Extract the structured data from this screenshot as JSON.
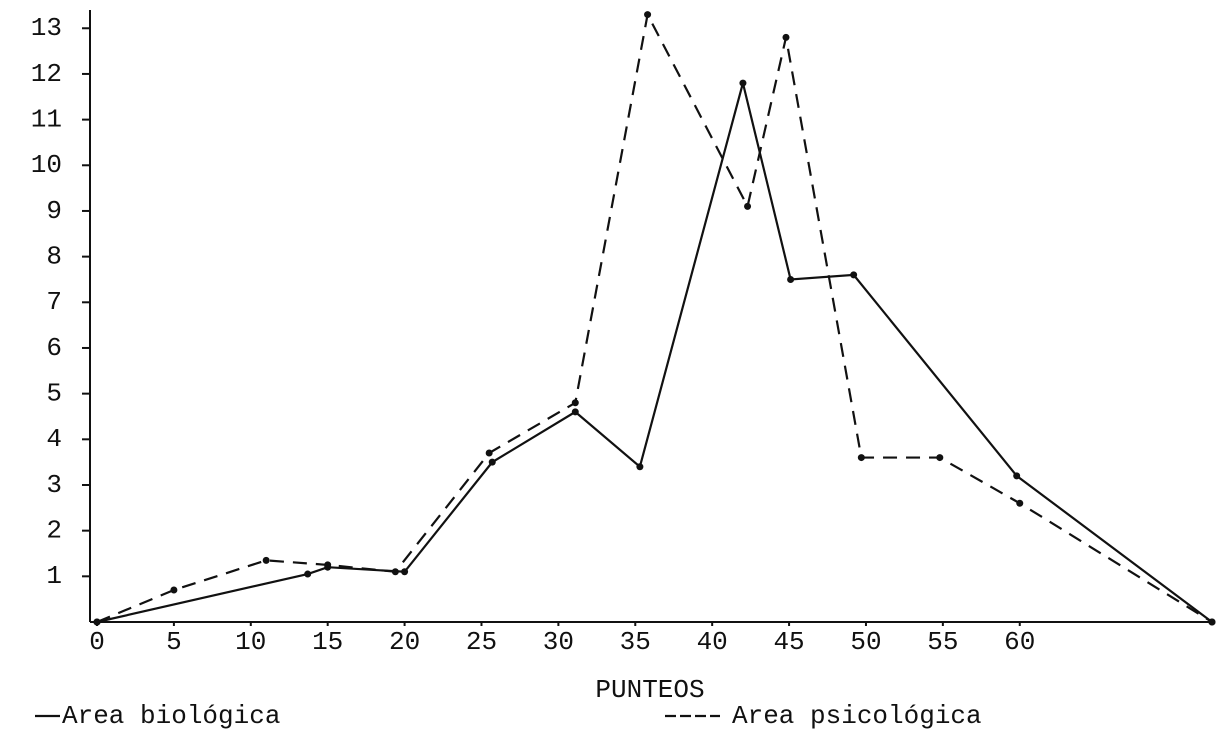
{
  "chart_data": {
    "type": "line",
    "x_label": "PUNTEOS",
    "xlim": [
      0,
      72.5
    ],
    "xticks": [
      0,
      5,
      10,
      15,
      20,
      25,
      30,
      35,
      40,
      45,
      50,
      55,
      60
    ],
    "ylim": [
      0,
      13.4
    ],
    "yticks": [
      1,
      2,
      3,
      4,
      5,
      6,
      7,
      8,
      9,
      10,
      11,
      12,
      13
    ],
    "grid": false,
    "series": [
      {
        "name": "Area biológica",
        "color": "#111111",
        "line_style": "solid",
        "x": [
          0,
          13.7,
          15,
          20,
          25.7,
          31.1,
          35.3,
          42,
          45.1,
          49.2,
          59.8,
          72.5
        ],
        "values": [
          0,
          1.05,
          1.2,
          1.1,
          3.5,
          4.6,
          3.4,
          11.8,
          7.5,
          7.6,
          3.2,
          0
        ]
      },
      {
        "name": "Area psicológica",
        "color": "#111111",
        "line_style": "dashed",
        "x": [
          0,
          5,
          11,
          15,
          19.4,
          25.5,
          31.1,
          35.8,
          42.3,
          44.8,
          49.7,
          54.8,
          60,
          72.5
        ],
        "values": [
          0,
          0.7,
          1.35,
          1.25,
          1.1,
          3.7,
          4.8,
          13.3,
          9.1,
          12.8,
          3.6,
          3.6,
          2.6,
          0
        ]
      }
    ]
  }
}
